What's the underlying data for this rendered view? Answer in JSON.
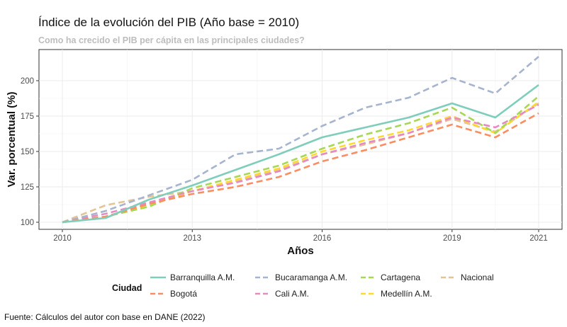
{
  "chart_data": {
    "type": "line",
    "title": "Índice de la evolución del PIB (Año base = 2010)",
    "subtitle": "Como ha crecido el PIB per cápita en las principales ciudades?",
    "xlabel": "Años",
    "ylabel": "Var. porcentual (%)",
    "caption": "Fuente: Cálculos del autor con base en DANE (2022)",
    "xlim": [
      2010,
      2021
    ],
    "ylim": [
      95,
      222
    ],
    "x_ticks": [
      2010,
      2013,
      2016,
      2019,
      2021
    ],
    "y_ticks": [
      100,
      125,
      150,
      175,
      200
    ],
    "grid": true,
    "legend_position": "bottom",
    "legend_title": "Ciudad",
    "x": [
      2010,
      2011,
      2012,
      2013,
      2014,
      2015,
      2016,
      2017,
      2018,
      2019,
      2020,
      2021
    ],
    "series": [
      {
        "name": "Barranquilla A.M.",
        "color": "#7fcdbb",
        "dash": "solid",
        "values": [
          100,
          103,
          116,
          126,
          137,
          148,
          160,
          167,
          174,
          184,
          174,
          197
        ]
      },
      {
        "name": "Bogotá",
        "color": "#fc8d62",
        "dash": "dashed",
        "values": [
          100,
          104,
          113,
          120,
          125,
          132,
          143,
          151,
          160,
          169,
          160,
          177
        ]
      },
      {
        "name": "Bucaramanga A.M.",
        "color": "#a6b4d0",
        "dash": "dashed",
        "values": [
          100,
          108,
          119,
          130,
          148,
          152,
          168,
          181,
          188,
          202,
          191,
          217
        ]
      },
      {
        "name": "Cali A.M.",
        "color": "#e78ac3",
        "dash": "dashed",
        "values": [
          100,
          106,
          114,
          122,
          128,
          136,
          148,
          156,
          163,
          174,
          167,
          183
        ]
      },
      {
        "name": "Cartagena",
        "color": "#a6d854",
        "dash": "dashed",
        "values": [
          100,
          104,
          111,
          124,
          132,
          140,
          152,
          162,
          170,
          181,
          163,
          189
        ]
      },
      {
        "name": "Medellín A.M.",
        "color": "#ffd92f",
        "dash": "dashed",
        "values": [
          100,
          104,
          112,
          122,
          130,
          138,
          150,
          158,
          165,
          175,
          163,
          185
        ]
      },
      {
        "name": "Nacional",
        "color": "#e5c494",
        "dash": "dashed",
        "values": [
          100,
          112,
          118,
          122,
          129,
          137,
          148,
          155,
          163,
          173,
          164,
          184
        ]
      }
    ]
  }
}
